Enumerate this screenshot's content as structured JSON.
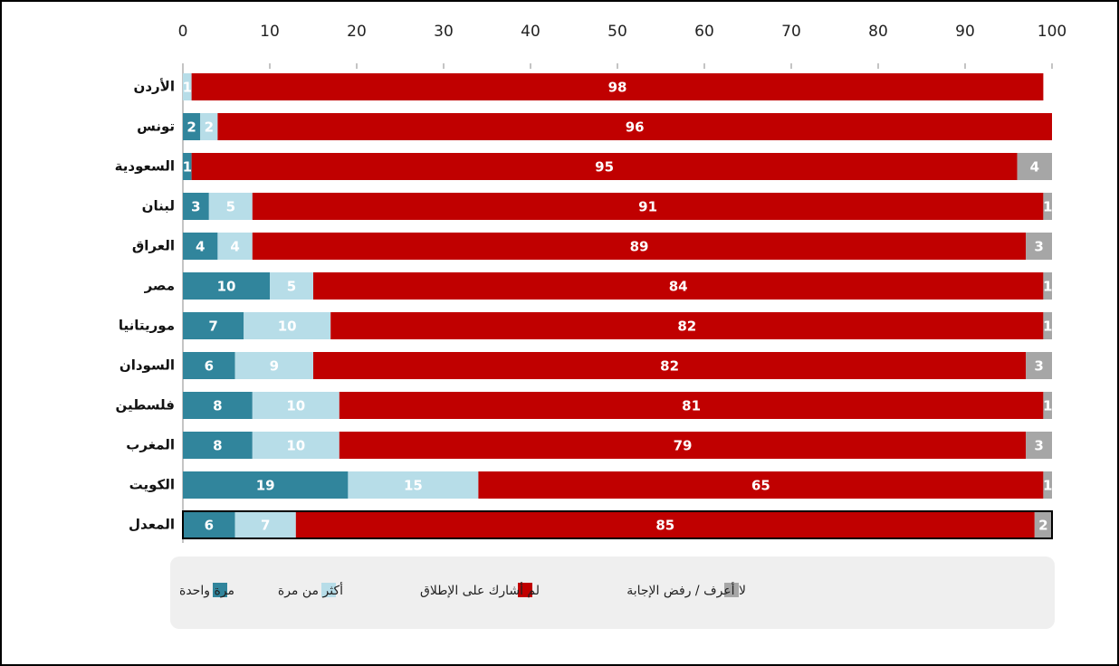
{
  "chart_data": {
    "type": "stacked-bar-horizontal",
    "categories": [
      "الأردن",
      "تونس",
      "السعودية",
      "لبنان",
      "العراق",
      "مصر",
      "موريتانيا",
      "السودان",
      "فلسطين",
      "المغرب",
      "الكويت",
      "المعدل"
    ],
    "series": [
      {
        "name": "مرة واحدة",
        "color": "#31859c",
        "values": [
          0,
          2,
          1,
          3,
          4,
          10,
          7,
          6,
          8,
          8,
          19,
          6
        ]
      },
      {
        "name": "أكثر من مرة",
        "color": "#b7dde8",
        "values": [
          1,
          2,
          0,
          5,
          4,
          5,
          10,
          9,
          10,
          10,
          15,
          7
        ]
      },
      {
        "name": "لم أشارك على الإطلاق",
        "color": "#c00000",
        "values": [
          98,
          96,
          95,
          91,
          89,
          84,
          82,
          82,
          81,
          79,
          65,
          85
        ]
      },
      {
        "name": "لا أعرف / رفض الإجابة",
        "color": "#a6a6a6",
        "values": [
          0,
          0,
          4,
          1,
          3,
          1,
          1,
          3,
          1,
          3,
          1,
          2
        ]
      }
    ],
    "xlim": [
      0,
      100
    ],
    "xticks": [
      0,
      10,
      20,
      30,
      40,
      50,
      60,
      70,
      80,
      90,
      100
    ],
    "legend": "bottom"
  }
}
